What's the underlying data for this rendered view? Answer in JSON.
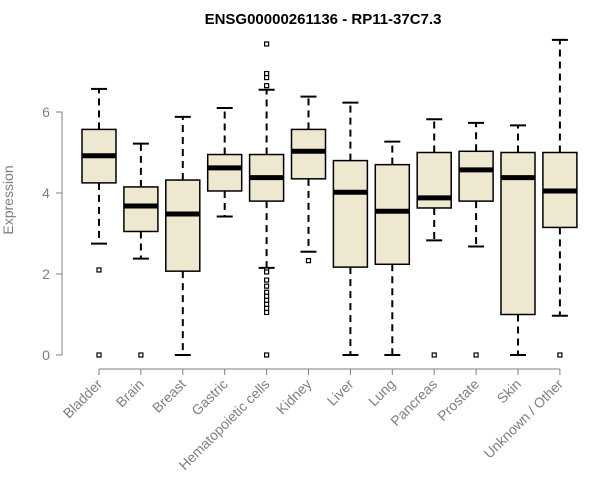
{
  "chart_data": {
    "type": "boxplot",
    "title": "ENSG00000261136 - RP11-37C7.3",
    "xlabel": "",
    "ylabel": "Expression",
    "ylim": [
      0,
      7.8
    ],
    "yticks": [
      0,
      2,
      4,
      6
    ],
    "box_fill": "#EFE8D0",
    "axis_color": "#7f7f7f",
    "categories": [
      "Bladder",
      "Brain",
      "Breast",
      "Gastric",
      "Hematopoietic cells",
      "Kidney",
      "Liver",
      "Lung",
      "Pancreas",
      "Prostate",
      "Skin",
      "Unknown / Other"
    ],
    "boxes": [
      {
        "name": "Bladder",
        "whisker_low": 2.75,
        "q1": 4.25,
        "median": 4.92,
        "q3": 5.57,
        "whisker_high": 6.57,
        "outliers": [
          2.1,
          0
        ]
      },
      {
        "name": "Brain",
        "whisker_low": 2.38,
        "q1": 3.05,
        "median": 3.68,
        "q3": 4.15,
        "whisker_high": 5.22,
        "outliers": [
          0
        ]
      },
      {
        "name": "Breast",
        "whisker_low": 0,
        "q1": 2.07,
        "median": 3.48,
        "q3": 4.32,
        "whisker_high": 5.88,
        "outliers": []
      },
      {
        "name": "Gastric",
        "whisker_low": 3.42,
        "q1": 4.05,
        "median": 4.62,
        "q3": 4.95,
        "whisker_high": 6.1,
        "outliers": []
      },
      {
        "name": "Hematopoietic cells",
        "whisker_low": 2.15,
        "q1": 3.8,
        "median": 4.38,
        "q3": 4.95,
        "whisker_high": 6.55,
        "outliers": [
          7.68,
          6.95,
          6.85,
          6.65,
          2.1,
          2.05,
          1.85,
          1.7,
          1.55,
          1.45,
          1.35,
          1.25,
          1.15,
          1.05,
          0
        ]
      },
      {
        "name": "Kidney",
        "whisker_low": 2.55,
        "q1": 4.35,
        "median": 5.03,
        "q3": 5.57,
        "whisker_high": 6.38,
        "outliers": [
          2.33
        ]
      },
      {
        "name": "Liver",
        "whisker_low": 0,
        "q1": 2.17,
        "median": 4.02,
        "q3": 4.8,
        "whisker_high": 6.23,
        "outliers": []
      },
      {
        "name": "Lung",
        "whisker_low": 0,
        "q1": 2.24,
        "median": 3.55,
        "q3": 4.7,
        "whisker_high": 5.27,
        "outliers": []
      },
      {
        "name": "Pancreas",
        "whisker_low": 2.83,
        "q1": 3.63,
        "median": 3.88,
        "q3": 5.0,
        "whisker_high": 5.82,
        "outliers": [
          0
        ]
      },
      {
        "name": "Prostate",
        "whisker_low": 2.68,
        "q1": 3.8,
        "median": 4.57,
        "q3": 5.03,
        "whisker_high": 5.73,
        "outliers": [
          0
        ]
      },
      {
        "name": "Skin",
        "whisker_low": 0,
        "q1": 1.0,
        "median": 4.38,
        "q3": 5.0,
        "whisker_high": 5.67,
        "outliers": []
      },
      {
        "name": "Unknown / Other",
        "whisker_low": 0.97,
        "q1": 3.15,
        "median": 4.05,
        "q3": 5.0,
        "whisker_high": 7.78,
        "outliers": [
          0
        ]
      }
    ]
  }
}
